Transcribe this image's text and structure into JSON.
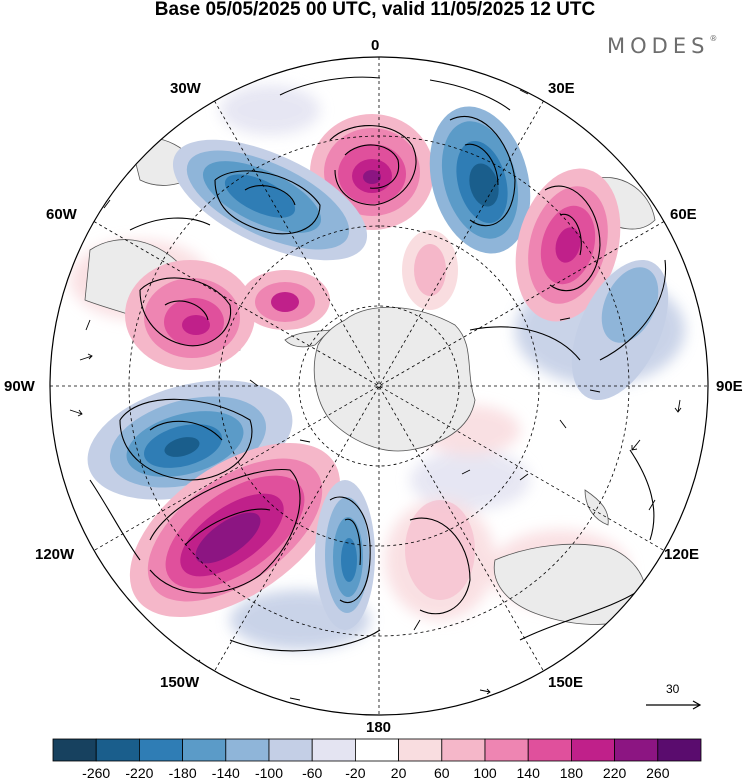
{
  "title": "Base 05/05/2025 00 UTC, valid 11/05/2025 12 UTC",
  "brand": {
    "name": "MODES",
    "mark": "®"
  },
  "longitude_labels": {
    "lon_0": "0",
    "lon_30e": "30E",
    "lon_60e": "60E",
    "lon_90e": "90E",
    "lon_120e": "120E",
    "lon_150e": "150E",
    "lon_180": "180",
    "lon_150w": "150W",
    "lon_120w": "120W",
    "lon_90w": "90W",
    "lon_60w": "60W",
    "lon_30w": "30W"
  },
  "vector_reference": {
    "value": "30"
  },
  "projection": "south-polar-stereographic",
  "colorbar": {
    "labels": [
      "-260",
      "-220",
      "-180",
      "-140",
      "-100",
      "-60",
      "-20",
      "20",
      "60",
      "100",
      "140",
      "180",
      "220",
      "260"
    ],
    "colors": [
      "#17415f",
      "#1a5e8c",
      "#2f7db5",
      "#5b9bc8",
      "#8fb5d9",
      "#c4cfe6",
      "#e4e4f2",
      "#ffffff",
      "#f9dde0",
      "#f5b7c9",
      "#ee85b2",
      "#e0509c",
      "#c0208a",
      "#8c1582",
      "#5a0c6e"
    ]
  },
  "colors": {
    "land": "#ebebeb",
    "coast": "#555555",
    "grid": "#000000"
  }
}
